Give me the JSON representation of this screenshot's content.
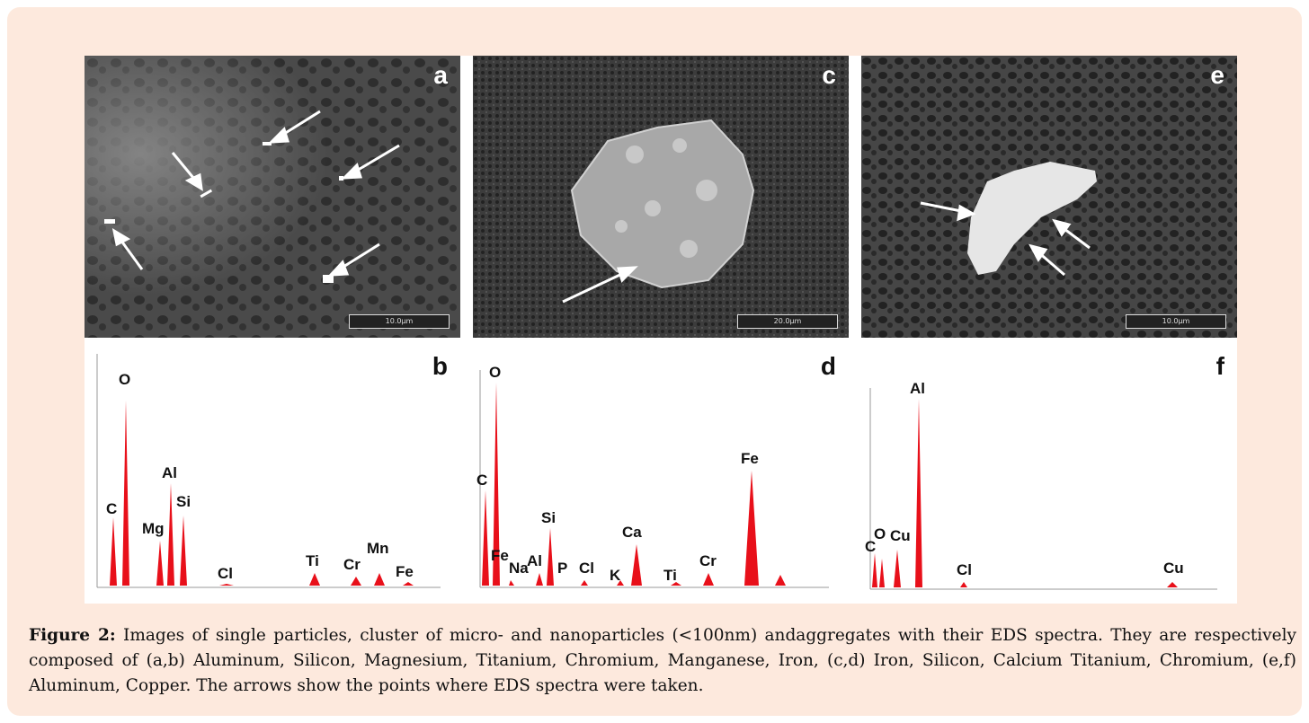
{
  "figure": {
    "panels": {
      "a": {
        "label": "a",
        "scale": "10.0µm"
      },
      "c": {
        "label": "c",
        "scale": "20.0µm"
      },
      "e": {
        "label": "e",
        "scale": "10.0µm"
      },
      "b": {
        "label": "b",
        "peaks": [
          "O",
          "C",
          "Mg",
          "Al",
          "Si",
          "Cl",
          "Ti",
          "Cr",
          "Mn",
          "Fe"
        ]
      },
      "d": {
        "label": "d",
        "peaks": [
          "O",
          "C",
          "Fe",
          "Na",
          "Al",
          "Si",
          "P",
          "Cl",
          "K",
          "Ca",
          "Ti",
          "Cr",
          "Fe"
        ]
      },
      "f": {
        "label": "f",
        "peaks": [
          "Al",
          "C",
          "O",
          "Cu",
          "Cl",
          "Cu"
        ]
      }
    },
    "colors": {
      "spectrum": "#e8101a",
      "background": "#fde9dd"
    }
  },
  "caption": {
    "label": "Figure 2:",
    "text": " Images of single particles, cluster of micro- and nanoparticles (<100nm) andaggregates with their EDS spectra. They are respectively composed of (a,b) Aluminum, Silicon, Magnesium, Titanium, Chromium, Manganese, Iron, (c,d) Iron, Silicon, Calcium Titanium, Chromium, (e,f) Aluminum, Copper. The arrows show the points where EDS spectra were taken."
  }
}
